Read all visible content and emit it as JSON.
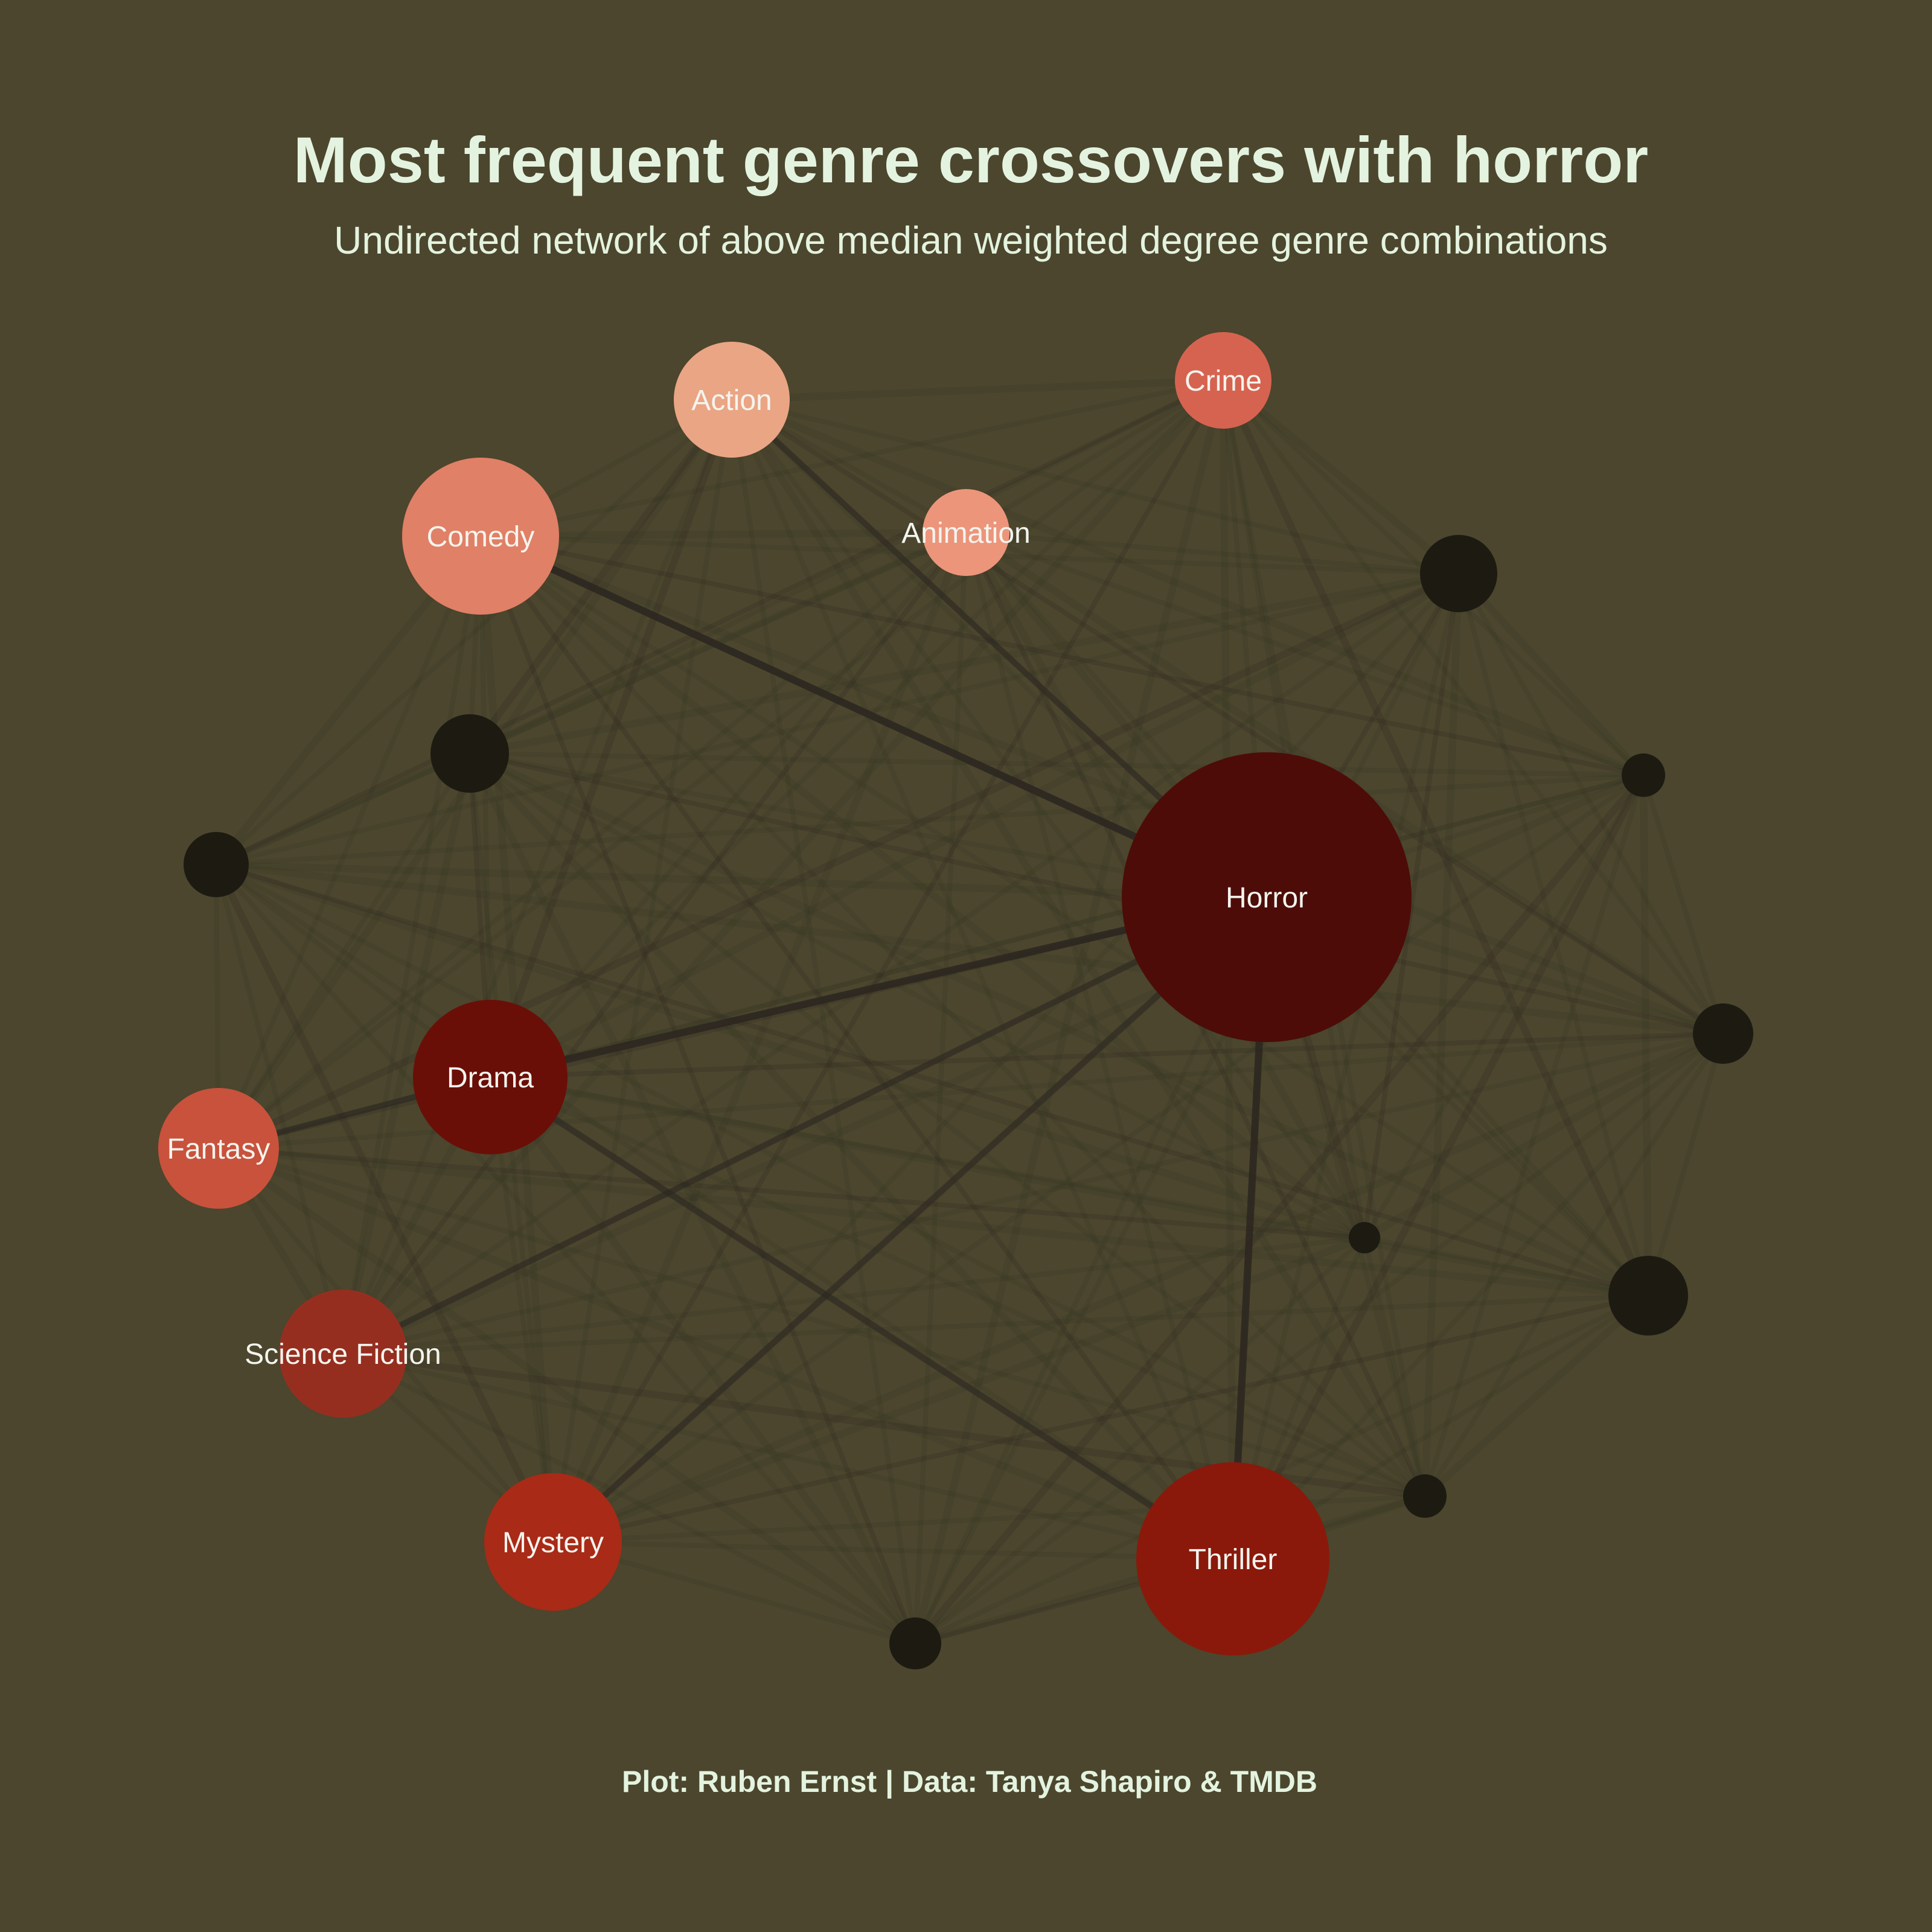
{
  "title": "Most frequent genre crossovers with horror",
  "subtitle": "Undirected network of above median weighted degree genre combinations",
  "caption": "Plot: Ruben Ernst | Data: Tanya Shapiro & TMDB",
  "colors": {
    "background": "#4b462d",
    "text": "#e4f3df",
    "edge": "#2c2620",
    "unlabeled_node": "#1d1a12"
  },
  "nodes": [
    {
      "id": "horror",
      "label": "Horror",
      "color": "#4d0c08"
    },
    {
      "id": "thriller",
      "label": "Thriller",
      "color": "#8a190b"
    },
    {
      "id": "drama",
      "label": "Drama",
      "color": "#6a0f07"
    },
    {
      "id": "mystery",
      "label": "Mystery",
      "color": "#a92a17"
    },
    {
      "id": "science-fiction",
      "label": "Science Fiction",
      "color": "#962e20"
    },
    {
      "id": "fantasy",
      "label": "Fantasy",
      "color": "#c8523c"
    },
    {
      "id": "comedy",
      "label": "Comedy",
      "color": "#e08066"
    },
    {
      "id": "action",
      "label": "Action",
      "color": "#eaa584"
    },
    {
      "id": "crime",
      "label": "Crime",
      "color": "#d66350"
    },
    {
      "id": "animation",
      "label": "Animation",
      "color": "#ec957b"
    },
    {
      "id": "u1",
      "label": "",
      "color": "#1d1a12"
    },
    {
      "id": "u2",
      "label": "",
      "color": "#1d1a12"
    },
    {
      "id": "u3",
      "label": "",
      "color": "#1d1a12"
    },
    {
      "id": "u4",
      "label": "",
      "color": "#1d1a12"
    },
    {
      "id": "u5",
      "label": "",
      "color": "#1d1a12"
    },
    {
      "id": "u6",
      "label": "",
      "color": "#1d1a12"
    },
    {
      "id": "u7",
      "label": "",
      "color": "#1d1a12"
    },
    {
      "id": "u8",
      "label": "",
      "color": "#1d1a12"
    },
    {
      "id": "u9",
      "label": "",
      "color": "#1d1a12"
    },
    {
      "id": "u10",
      "label": "",
      "color": "#1d1a12"
    }
  ],
  "strong_edges": [
    [
      "horror",
      "comedy"
    ],
    [
      "horror",
      "drama"
    ],
    [
      "horror",
      "thriller"
    ],
    [
      "horror",
      "science-fiction"
    ],
    [
      "horror",
      "mystery"
    ],
    [
      "horror",
      "action"
    ],
    [
      "drama",
      "fantasy"
    ],
    [
      "drama",
      "thriller"
    ]
  ]
}
